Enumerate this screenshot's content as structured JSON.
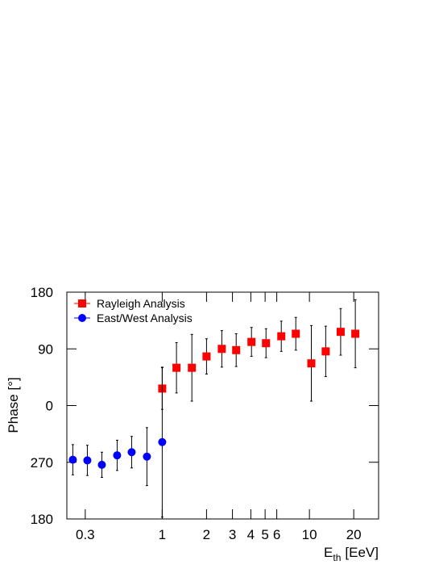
{
  "chart_data": {
    "type": "scatter",
    "xlabel": "E",
    "xlabel_sub": "th",
    "xlabel_unit": "[EeV]",
    "ylabel": "Phase [°]",
    "xscale": "log",
    "xlim": [
      0.225,
      29.5
    ],
    "ylim": [
      -180,
      180
    ],
    "xticks": [
      0.3,
      1,
      2,
      3,
      4,
      5,
      6,
      10,
      20
    ],
    "yticks": [
      180,
      90,
      0,
      {
        "value": -90,
        "label": "270"
      },
      {
        "value": -180,
        "label": "180"
      }
    ],
    "legend": "upper left",
    "series": [
      {
        "name": "Rayleigh Analysis",
        "color": "#ff0000",
        "marker": "square",
        "x": [
          1.0,
          1.25,
          1.59,
          2.0,
          2.54,
          3.18,
          4.04,
          5.07,
          6.44,
          8.08,
          10.3,
          12.9,
          16.3,
          20.5
        ],
        "values": [
          27,
          60,
          60,
          78,
          90,
          88,
          101,
          99,
          110,
          114,
          67,
          86,
          117,
          114
        ],
        "errors": [
          33,
          40,
          53,
          28,
          29,
          26,
          23,
          23,
          24,
          26,
          60,
          40,
          37,
          54
        ]
      },
      {
        "name": "East/West Analysis",
        "color": "#0000ff",
        "marker": "circle",
        "x": [
          0.247,
          0.31,
          0.389,
          0.494,
          0.62,
          0.787,
          1.0
        ],
        "values": [
          -86,
          -87,
          -94,
          -79,
          -74,
          -81,
          -58
        ],
        "errors": [
          24,
          24,
          20,
          24,
          25,
          46,
          119
        ]
      }
    ]
  }
}
